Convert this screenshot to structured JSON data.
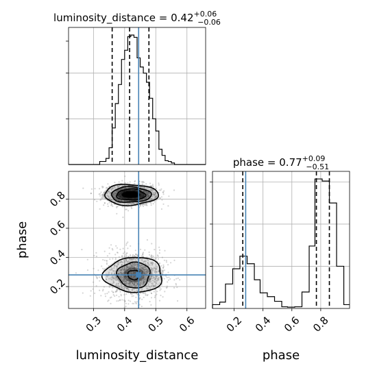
{
  "chart_data": [
    {
      "type": "histogram",
      "panel": "marginal",
      "parameter": "luminosity_distance",
      "title": {
        "text": "luminosity_distance = 0.42",
        "sup": "+0.06",
        "sub": "−0.06"
      },
      "xlim": [
        0.22,
        0.66
      ],
      "bin_edges": [
        0.25,
        0.26,
        0.27,
        0.28,
        0.29,
        0.3,
        0.31,
        0.32,
        0.33,
        0.34,
        0.35,
        0.36,
        0.37,
        0.38,
        0.39,
        0.4,
        0.41,
        0.42,
        0.43,
        0.44,
        0.45,
        0.46,
        0.47,
        0.48,
        0.49,
        0.5,
        0.51,
        0.52,
        0.53,
        0.54,
        0.55,
        0.56,
        0.57,
        0.58,
        0.59,
        0.6,
        0.61,
        0.62,
        0.63,
        0.64
      ],
      "counts": [
        0,
        0,
        0,
        0,
        0,
        0,
        0,
        4,
        4,
        8,
        22,
        48,
        80,
        105,
        138,
        150,
        168,
        170,
        167,
        140,
        128,
        120,
        108,
        87,
        60,
        44,
        20,
        12,
        5,
        4,
        2,
        0,
        0,
        0,
        0,
        0,
        0,
        0,
        0
      ],
      "ylim": [
        0,
        180
      ],
      "quantiles": [
        0.36,
        0.416,
        0.478
      ],
      "truth": 0.445
    },
    {
      "type": "histogram",
      "panel": "marginal",
      "parameter": "phase",
      "title": {
        "text": "phase = 0.77",
        "sup": "+0.09",
        "sub": "−0.51"
      },
      "xlim": [
        0.05,
        1.0
      ],
      "bin_edges": [
        0.05,
        0.1,
        0.14,
        0.19,
        0.24,
        0.29,
        0.34,
        0.38,
        0.43,
        0.48,
        0.53,
        0.57,
        0.62,
        0.67,
        0.72,
        0.76,
        0.81,
        0.86,
        0.91,
        0.96,
        1.0
      ],
      "counts": [
        9,
        15,
        58,
        94,
        124,
        106,
        68,
        37,
        28,
        17,
        4,
        3,
        4,
        39,
        148,
        307,
        302,
        250,
        100,
        9
      ],
      "ylim": [
        0,
        325
      ],
      "quantiles": [
        0.26,
        0.77,
        0.86
      ],
      "truth": 0.28
    },
    {
      "type": "scatter",
      "panel": "joint",
      "x_parameter": "luminosity_distance",
      "y_parameter": "phase",
      "xlabel": "luminosity_distance",
      "ylabel": "phase",
      "xlim": [
        0.22,
        0.66
      ],
      "ylim": [
        0.05,
        0.99
      ],
      "x_ticks": [
        0.3,
        0.4,
        0.5,
        0.6
      ],
      "y_ticks": [
        0.2,
        0.4,
        0.6,
        0.8
      ],
      "truth": [
        0.445,
        0.28
      ],
      "modes": [
        {
          "x_center": 0.42,
          "y_center": 0.83,
          "x_spread": 0.04,
          "y_spread": 0.035
        },
        {
          "x_center": 0.43,
          "y_center": 0.28,
          "x_spread": 0.045,
          "y_spread": 0.075
        }
      ],
      "contour_levels": [
        {
          "mode": 0,
          "rx": 0.046,
          "ry": 0.038
        },
        {
          "mode": 0,
          "rx": 0.064,
          "ry": 0.053
        },
        {
          "mode": 0,
          "rx": 0.086,
          "ry": 0.071
        },
        {
          "mode": 1,
          "rx": 0.02,
          "ry": 0.032
        },
        {
          "mode": 1,
          "rx": 0.052,
          "ry": 0.088
        },
        {
          "mode": 1,
          "rx": 0.094,
          "ry": 0.12
        }
      ]
    },
    {
      "type": "histogram",
      "panel": "marginal",
      "parameter": "phase",
      "xlabel": "phase",
      "x_ticks": [
        0.2,
        0.4,
        0.6,
        0.8
      ]
    }
  ],
  "colors": {
    "truth": "#4682b4",
    "line": "#000000",
    "grid": "#b0b0b0",
    "points": "#888888"
  }
}
